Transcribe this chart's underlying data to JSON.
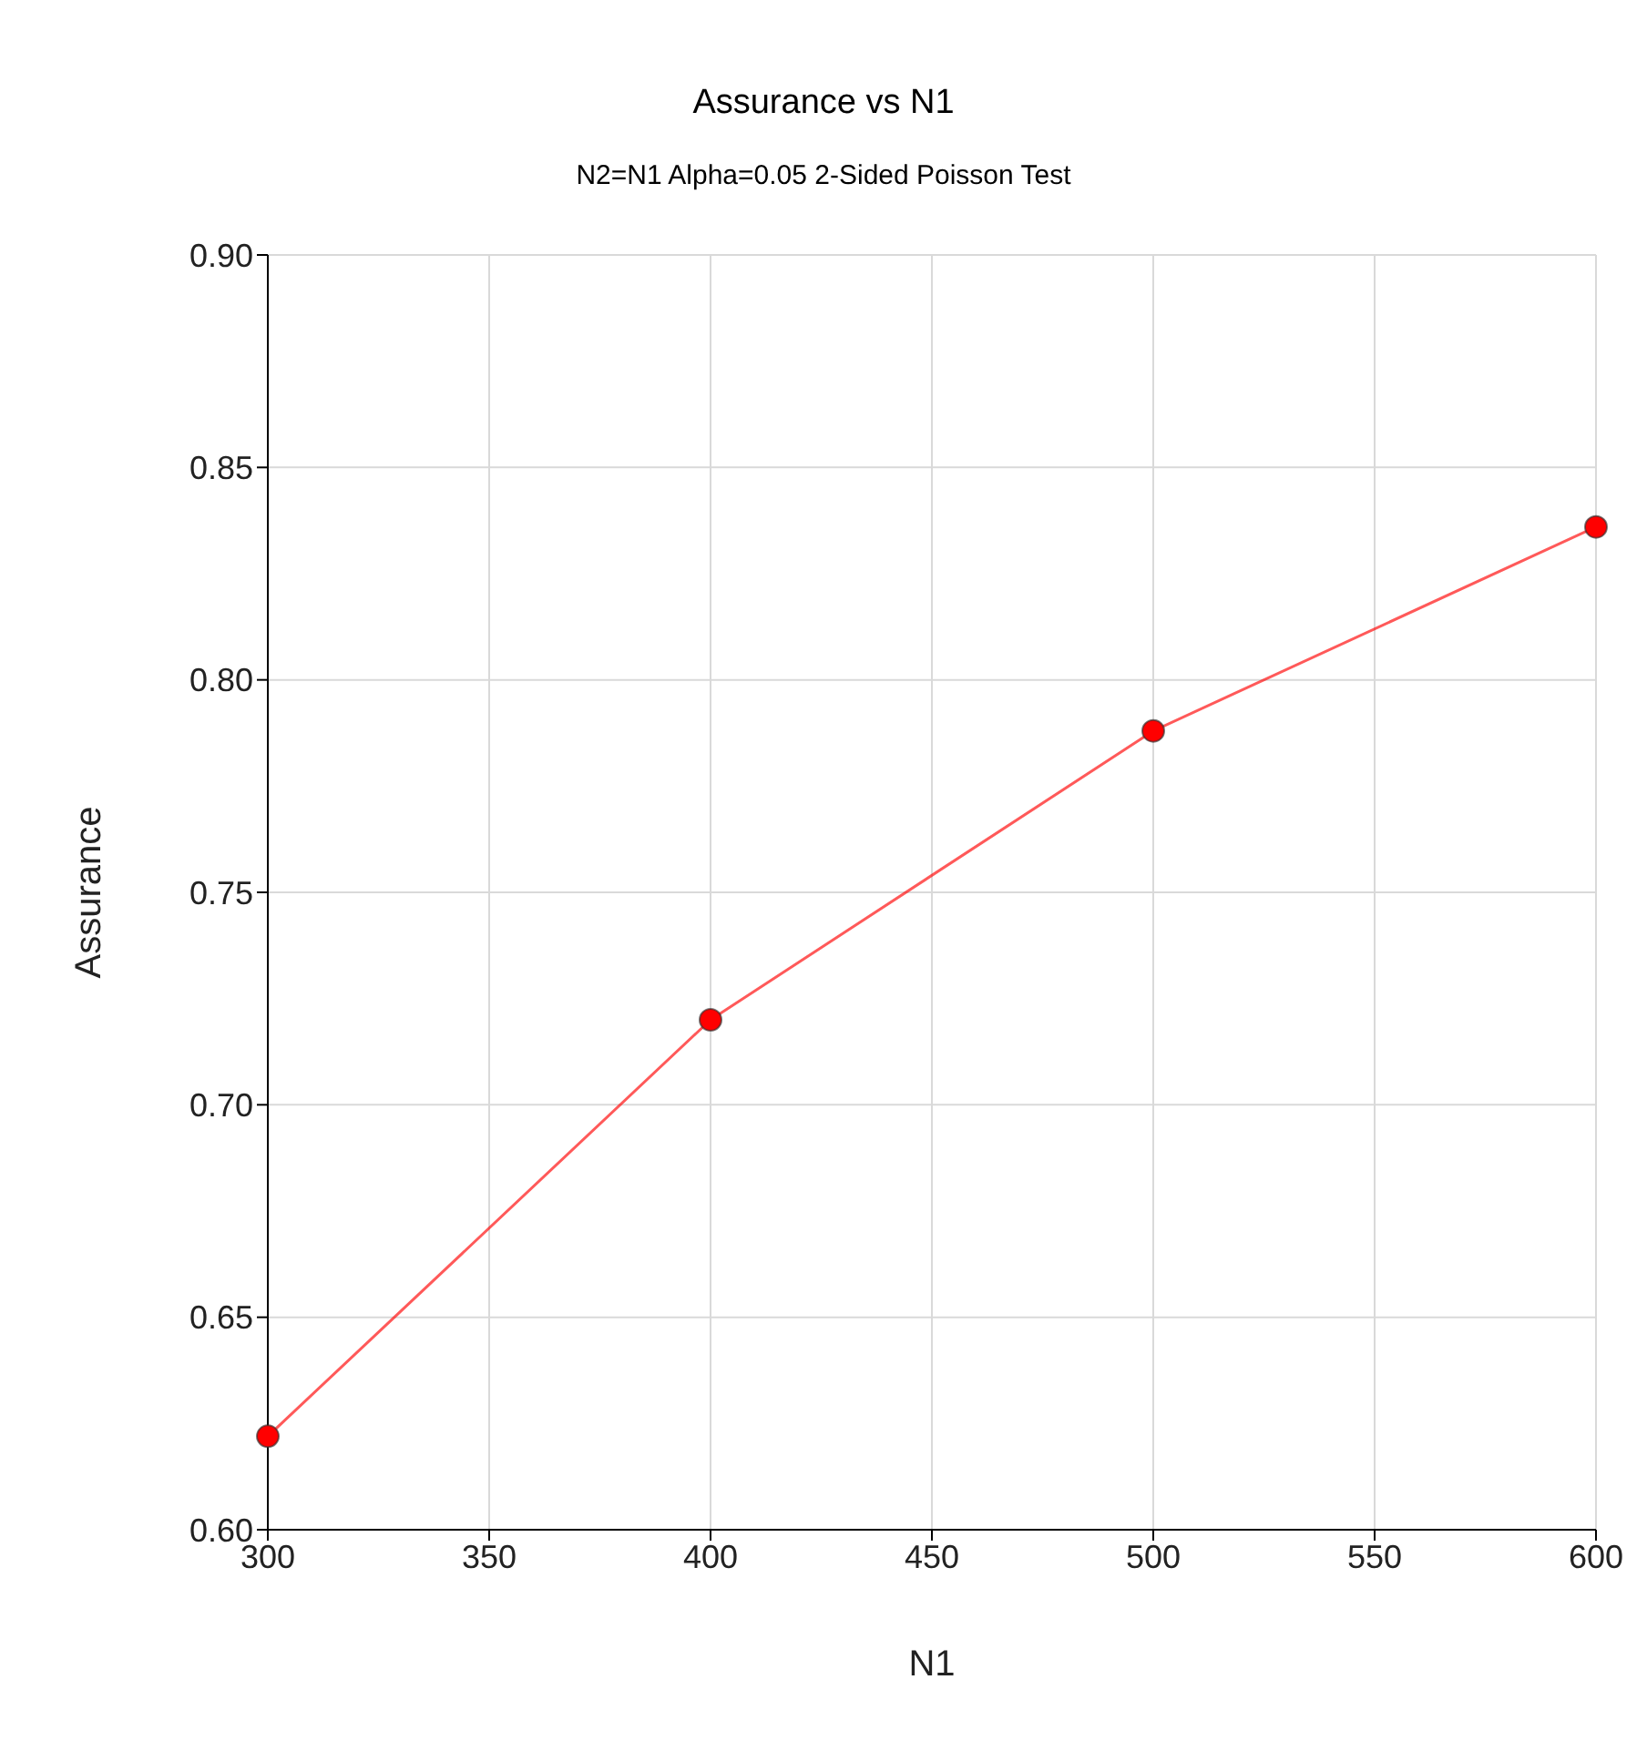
{
  "chart_data": {
    "type": "line",
    "title": "Assurance vs N1",
    "subtitle": "N2=N1 Alpha=0.05 2-Sided Poisson Test",
    "xlabel": "N1",
    "ylabel": "Assurance",
    "x": [
      300,
      400,
      500,
      600
    ],
    "series": [
      {
        "color": "#ff0000",
        "values": [
          0.622,
          0.72,
          0.788,
          0.836
        ]
      }
    ],
    "xlim": [
      300,
      600
    ],
    "xticks": [
      300,
      350,
      400,
      450,
      500,
      550,
      600
    ],
    "ylim": [
      0.6,
      0.9
    ],
    "yticks": [
      {
        "value": 0.6,
        "label": "0.60"
      },
      {
        "value": 0.65,
        "label": "0.65"
      },
      {
        "value": 0.7,
        "label": "0.70"
      },
      {
        "value": 0.75,
        "label": "0.75"
      },
      {
        "value": 0.8,
        "label": "0.80"
      },
      {
        "value": 0.85,
        "label": "0.85"
      },
      {
        "value": 0.9,
        "label": "0.90"
      }
    ],
    "grid": true,
    "marker": "circle",
    "line_style": "solid",
    "legend": false
  }
}
